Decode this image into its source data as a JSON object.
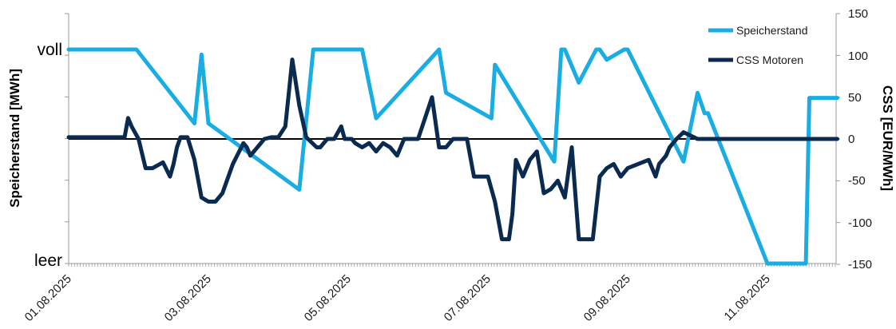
{
  "chart_data": {
    "type": "line",
    "title": "",
    "colors": {
      "speicherstand": "#1AADE4",
      "css": "#0B2A50",
      "zero_line": "#000000",
      "axis": "#9a9a9a",
      "cat_label": "#1F3D6B"
    },
    "x_start": "01.08.2025",
    "x_end": "12.08.2025",
    "x_ticks": [
      "01.08.2025",
      "03.08.2025",
      "05.08.2025",
      "07.08.2025",
      "09.08.2025",
      "11.08.2025"
    ],
    "left_axis": {
      "title": "Speicherstand [MWh]",
      "labels": [
        "voll",
        "leer"
      ],
      "range": [
        0,
        100
      ]
    },
    "right_axis": {
      "title": "CSS [EUR/MWh]",
      "range": [
        -150,
        150
      ],
      "ticks": [
        "150",
        "100",
        "50",
        "0",
        "-50",
        "-100",
        "-150"
      ]
    },
    "legend": {
      "position": "top-right"
    },
    "series": [
      {
        "name": "Speicherstand",
        "axis": "left",
        "x_days": [
          0,
          0.97,
          1.8,
          1.9,
          2.0,
          3.3,
          3.5,
          4.2,
          4.4,
          5.3,
          5.4,
          6.05,
          6.1,
          6.95,
          7.05,
          7.1,
          7.3,
          7.55,
          7.6,
          7.7,
          7.95,
          8.0,
          8.8,
          9.0,
          9.1,
          9.15,
          10.0,
          10.55,
          10.6,
          11.0
        ],
        "values": [
          84,
          84,
          55,
          82,
          55,
          29,
          84,
          84,
          57,
          84,
          67,
          57,
          78,
          40,
          84,
          84,
          71,
          84,
          84,
          80,
          84,
          84,
          40,
          67,
          59,
          59,
          0,
          0,
          65,
          65
        ]
      },
      {
        "name": "CSS Motoren",
        "axis": "right",
        "x_days": [
          0,
          0.8,
          0.85,
          0.9,
          1.0,
          1.1,
          1.2,
          1.35,
          1.45,
          1.5,
          1.55,
          1.6,
          1.7,
          1.8,
          1.9,
          2.0,
          2.1,
          2.2,
          2.35,
          2.5,
          2.55,
          2.6,
          2.7,
          2.8,
          2.9,
          3.0,
          3.1,
          3.2,
          3.3,
          3.4,
          3.55,
          3.6,
          3.7,
          3.8,
          3.9,
          3.95,
          4.05,
          4.1,
          4.2,
          4.3,
          4.4,
          4.5,
          4.6,
          4.7,
          4.8,
          4.9,
          5.0,
          5.1,
          5.2,
          5.3,
          5.4,
          5.5,
          5.6,
          5.7,
          5.8,
          5.9,
          6.0,
          6.1,
          6.2,
          6.3,
          6.35,
          6.4,
          6.5,
          6.6,
          6.7,
          6.8,
          6.9,
          7.0,
          7.1,
          7.2,
          7.3,
          7.4,
          7.5,
          7.6,
          7.7,
          7.8,
          7.9,
          8.0,
          8.3,
          8.4,
          8.45,
          8.55,
          8.6,
          8.65,
          8.7,
          8.8,
          9.0,
          9.1,
          9.15,
          9.25,
          9.3,
          9.4,
          9.5,
          9.6,
          9.7,
          9.8,
          9.85,
          9.9,
          10.0,
          10.1,
          10.2,
          10.3,
          10.4,
          10.5,
          10.6,
          10.7,
          10.8,
          10.9,
          11.0
        ],
        "values": [
          2,
          2,
          25,
          15,
          0,
          -35,
          -35,
          -28,
          -45,
          -30,
          -10,
          2,
          2,
          -25,
          -70,
          -75,
          -75,
          -65,
          -30,
          -5,
          -10,
          -20,
          -10,
          0,
          2,
          2,
          15,
          95,
          40,
          2,
          -10,
          -10,
          0,
          0,
          15,
          0,
          0,
          -5,
          -10,
          -5,
          -15,
          -5,
          -10,
          -20,
          0,
          0,
          0,
          25,
          50,
          -10,
          -10,
          0,
          0,
          0,
          -45,
          -45,
          -45,
          -75,
          -120,
          -120,
          -90,
          -25,
          -45,
          -25,
          -15,
          -65,
          -60,
          -50,
          -70,
          -10,
          -120,
          -120,
          -120,
          -45,
          -35,
          -30,
          -45,
          -35,
          -25,
          -45,
          -30,
          -20,
          -10,
          -5,
          0,
          8,
          0,
          0,
          0,
          0,
          0,
          0,
          0,
          0,
          0,
          0,
          0,
          0,
          0,
          0,
          0,
          0,
          0,
          0,
          0,
          0,
          0,
          0,
          0
        ]
      }
    ]
  }
}
